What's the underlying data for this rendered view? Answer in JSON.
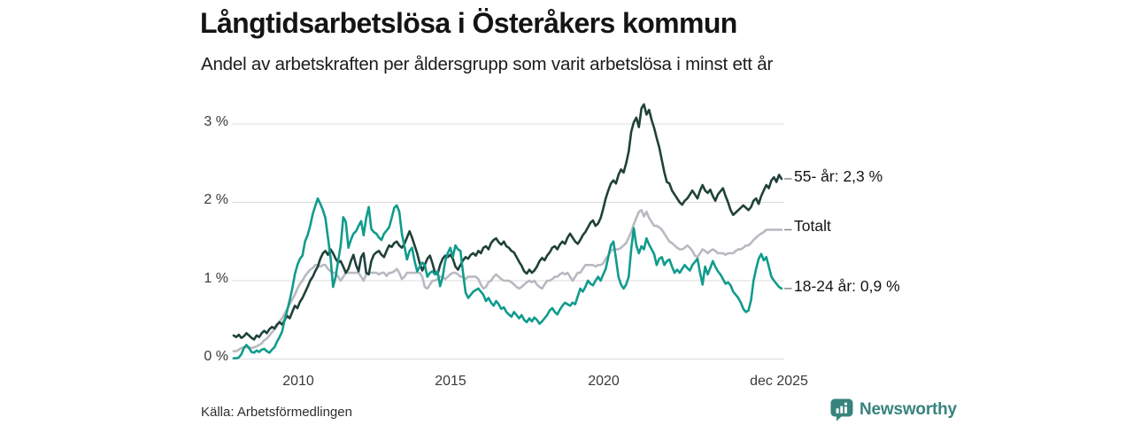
{
  "header": {
    "title": "Långtidsarbetslösa i Österåkers kommun",
    "subtitle": "Andel av arbetskraften per åldersgrupp som varit arbetslösa i minst ett år"
  },
  "source": {
    "label": "Källa: Arbetsförmedlingen"
  },
  "logo": {
    "text": "Newsworthy",
    "color": "#37837d",
    "icon": "bar-chart-bubble-icon"
  },
  "chart_data": {
    "type": "line",
    "title": "Långtidsarbetslösa i Österåkers kommun",
    "subtitle": "Andel av arbetskraften per åldersgrupp som varit arbetslösa i minst ett år",
    "xlabel": "",
    "ylabel": "",
    "x_unit": "month",
    "x_start": 2008.0,
    "x_end_label": "dec 2025",
    "ylim": [
      0,
      3.4
    ],
    "grid": "horizontal-only",
    "legend_position": "right-end-labels",
    "y_ticks": [
      {
        "label": "3 %",
        "value": 3
      },
      {
        "label": "2 %",
        "value": 2
      },
      {
        "label": "1 %",
        "value": 1
      },
      {
        "label": "0 %",
        "value": 0
      }
    ],
    "x_ticks": [
      {
        "label": "2010"
      },
      {
        "label": "2015"
      },
      {
        "label": "2020"
      },
      {
        "label": "dec 2025"
      }
    ],
    "series": [
      {
        "id": "55-ar",
        "name": "55- år",
        "end_label": "55- år: 2,3 %",
        "end_value_label": "2,3 %",
        "color": "#20413a",
        "values": [
          0.3,
          0.28,
          0.31,
          0.27,
          0.29,
          0.33,
          0.3,
          0.27,
          0.25,
          0.3,
          0.28,
          0.33,
          0.36,
          0.33,
          0.38,
          0.41,
          0.39,
          0.44,
          0.47,
          0.44,
          0.5,
          0.55,
          0.52,
          0.6,
          0.68,
          0.65,
          0.73,
          0.78,
          0.85,
          0.92,
          1.0,
          1.05,
          1.12,
          1.18,
          1.28,
          1.35,
          1.38,
          1.33,
          1.4,
          1.35,
          1.28,
          1.23,
          1.25,
          1.18,
          1.1,
          1.15,
          1.25,
          1.33,
          1.2,
          1.12,
          1.3,
          1.35,
          1.1,
          1.08,
          1.25,
          1.33,
          1.36,
          1.38,
          1.33,
          1.3,
          1.38,
          1.45,
          1.43,
          1.48,
          1.5,
          1.45,
          1.42,
          1.47,
          1.55,
          1.63,
          1.55,
          1.45,
          1.35,
          1.22,
          1.13,
          1.2,
          1.28,
          1.32,
          1.22,
          1.1,
          1.08,
          1.2,
          1.28,
          1.32,
          1.3,
          1.33,
          1.28,
          1.18,
          1.14,
          1.2,
          1.26,
          1.3,
          1.28,
          1.33,
          1.35,
          1.32,
          1.38,
          1.35,
          1.42,
          1.44,
          1.4,
          1.48,
          1.52,
          1.54,
          1.49,
          1.46,
          1.5,
          1.44,
          1.42,
          1.38,
          1.36,
          1.3,
          1.24,
          1.19,
          1.12,
          1.09,
          1.14,
          1.1,
          1.13,
          1.18,
          1.25,
          1.29,
          1.26,
          1.32,
          1.36,
          1.42,
          1.44,
          1.4,
          1.46,
          1.5,
          1.47,
          1.55,
          1.6,
          1.55,
          1.5,
          1.47,
          1.52,
          1.58,
          1.62,
          1.68,
          1.74,
          1.77,
          1.7,
          1.73,
          1.8,
          1.92,
          2.05,
          2.15,
          2.24,
          2.28,
          2.24,
          2.35,
          2.42,
          2.38,
          2.5,
          2.65,
          2.9,
          3.02,
          3.08,
          2.96,
          3.2,
          3.25,
          3.12,
          3.18,
          3.05,
          2.95,
          2.82,
          2.7,
          2.54,
          2.38,
          2.26,
          2.24,
          2.15,
          2.1,
          2.05,
          2.0,
          1.97,
          2.02,
          2.05,
          2.1,
          2.15,
          2.1,
          2.05,
          2.15,
          2.22,
          2.15,
          2.12,
          2.16,
          2.08,
          2.02,
          2.1,
          2.14,
          2.18,
          2.08,
          2.0,
          1.9,
          1.84,
          1.87,
          1.9,
          1.93,
          1.96,
          1.93,
          1.9,
          1.94,
          2.02,
          2.05,
          1.98,
          2.08,
          2.15,
          2.22,
          2.18,
          2.28,
          2.32,
          2.26,
          2.35,
          2.3
        ]
      },
      {
        "id": "totalt",
        "name": "Totalt",
        "end_label": "Totalt",
        "end_value_label": "",
        "color": "#b9b9c2",
        "values": [
          0.1,
          0.1,
          0.12,
          0.14,
          0.15,
          0.15,
          0.15,
          0.14,
          0.15,
          0.16,
          0.18,
          0.2,
          0.24,
          0.26,
          0.3,
          0.34,
          0.38,
          0.42,
          0.48,
          0.52,
          0.58,
          0.64,
          0.7,
          0.76,
          0.82,
          0.9,
          0.96,
          1.0,
          1.06,
          1.1,
          1.14,
          1.16,
          1.2,
          1.2,
          1.18,
          1.2,
          1.2,
          1.15,
          1.12,
          1.1,
          1.1,
          1.05,
          1.0,
          1.05,
          1.1,
          1.1,
          1.1,
          1.1,
          1.1,
          1.1,
          1.05,
          1.0,
          1.08,
          1.1,
          1.1,
          1.1,
          1.1,
          1.08,
          1.1,
          1.1,
          1.06,
          1.1,
          1.1,
          1.12,
          1.15,
          1.1,
          1.02,
          1.05,
          1.1,
          1.1,
          1.1,
          1.1,
          1.1,
          1.1,
          1.05,
          0.92,
          0.9,
          0.95,
          1.0,
          1.0,
          1.02,
          1.05,
          1.05,
          1.02,
          1.05,
          1.08,
          1.1,
          1.1,
          1.08,
          1.05,
          1.05,
          1.02,
          1.05,
          1.05,
          1.05,
          1.05,
          1.02,
          0.95,
          0.9,
          0.92,
          0.98,
          1.0,
          1.05,
          1.08,
          1.05,
          1.02,
          1.0,
          1.0,
          1.0,
          0.98,
          0.95,
          0.92,
          0.9,
          0.92,
          0.95,
          0.98,
          1.0,
          0.98,
          1.0,
          0.95,
          0.92,
          0.9,
          0.95,
          1.0,
          1.0,
          1.02,
          1.05,
          1.05,
          1.08,
          1.1,
          1.08,
          1.1,
          1.05,
          1.0,
          1.05,
          1.1,
          1.1,
          1.15,
          1.2,
          1.2,
          1.2,
          1.2,
          1.18,
          1.2,
          1.2,
          1.22,
          1.28,
          1.32,
          1.38,
          1.4,
          1.4,
          1.4,
          1.42,
          1.45,
          1.48,
          1.55,
          1.62,
          1.72,
          1.8,
          1.88,
          1.9,
          1.82,
          1.88,
          1.8,
          1.75,
          1.7,
          1.7,
          1.68,
          1.65,
          1.6,
          1.55,
          1.5,
          1.48,
          1.45,
          1.42,
          1.4,
          1.4,
          1.42,
          1.45,
          1.42,
          1.38,
          1.32,
          1.3,
          1.35,
          1.4,
          1.38,
          1.35,
          1.38,
          1.4,
          1.38,
          1.35,
          1.35,
          1.35,
          1.33,
          1.35,
          1.35,
          1.35,
          1.38,
          1.4,
          1.4,
          1.42,
          1.45,
          1.45,
          1.48,
          1.52,
          1.55,
          1.58,
          1.6,
          1.62,
          1.65,
          1.65,
          1.65,
          1.65,
          1.65,
          1.65,
          1.65
        ]
      },
      {
        "id": "18-24-ar",
        "name": "18-24 år",
        "end_label": "18-24 år: 0,9 %",
        "end_value_label": "0,9 %",
        "color": "#109b8c",
        "values": [
          0.01,
          0.01,
          0.02,
          0.06,
          0.14,
          0.18,
          0.14,
          0.09,
          0.08,
          0.11,
          0.09,
          0.12,
          0.13,
          0.1,
          0.08,
          0.12,
          0.15,
          0.22,
          0.28,
          0.35,
          0.5,
          0.62,
          0.75,
          0.9,
          1.08,
          1.2,
          1.28,
          1.32,
          1.5,
          1.58,
          1.7,
          1.85,
          1.95,
          2.05,
          1.98,
          1.9,
          1.8,
          1.55,
          1.3,
          0.92,
          1.05,
          1.25,
          1.45,
          1.81,
          1.75,
          1.42,
          1.52,
          1.6,
          1.63,
          1.7,
          1.76,
          1.58,
          1.8,
          1.94,
          1.66,
          1.62,
          1.6,
          1.55,
          1.52,
          1.6,
          1.64,
          1.68,
          1.8,
          1.93,
          1.96,
          1.88,
          1.6,
          1.44,
          1.27,
          1.38,
          1.42,
          1.25,
          1.12,
          1.18,
          1.23,
          1.2,
          1.05,
          1.1,
          1.12,
          1.08,
          1.12,
          0.93,
          1.05,
          1.25,
          1.35,
          1.42,
          1.3,
          1.45,
          1.4,
          1.38,
          1.1,
          0.85,
          0.78,
          0.82,
          0.86,
          0.88,
          0.9,
          0.86,
          0.82,
          0.74,
          0.78,
          0.72,
          0.68,
          0.74,
          0.7,
          0.64,
          0.66,
          0.6,
          0.57,
          0.54,
          0.6,
          0.56,
          0.52,
          0.56,
          0.5,
          0.47,
          0.52,
          0.48,
          0.53,
          0.5,
          0.45,
          0.48,
          0.52,
          0.56,
          0.62,
          0.65,
          0.6,
          0.57,
          0.63,
          0.68,
          0.72,
          0.7,
          0.68,
          0.72,
          0.7,
          0.8,
          0.9,
          0.86,
          0.92,
          1.0,
          0.96,
          0.94,
          1.0,
          1.05,
          1.0,
          1.08,
          1.15,
          1.3,
          1.45,
          1.5,
          1.28,
          1.05,
          0.95,
          0.9,
          0.95,
          1.05,
          1.4,
          1.67,
          1.45,
          1.35,
          1.44,
          1.4,
          1.54,
          1.46,
          1.4,
          1.34,
          1.2,
          1.28,
          1.3,
          1.2,
          1.25,
          1.27,
          1.18,
          1.1,
          1.14,
          1.1,
          1.15,
          1.2,
          1.16,
          1.13,
          1.2,
          1.24,
          1.28,
          1.1,
          0.95,
          1.18,
          1.08,
          1.16,
          1.25,
          1.18,
          1.12,
          1.08,
          1.02,
          0.96,
          0.98,
          0.94,
          0.86,
          0.82,
          0.78,
          0.72,
          0.64,
          0.6,
          0.62,
          0.75,
          1.0,
          1.15,
          1.28,
          1.34,
          1.26,
          1.3,
          1.18,
          1.05,
          1.0,
          0.96,
          0.92,
          0.9
        ]
      }
    ]
  }
}
